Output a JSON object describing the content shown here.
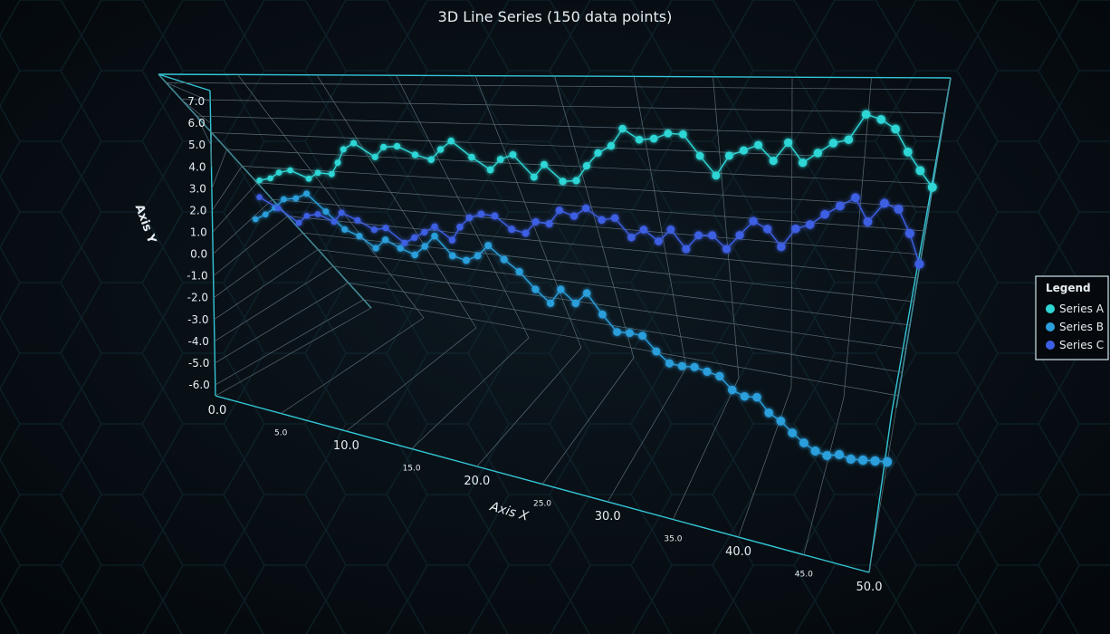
{
  "chart_data": {
    "type": "line3d",
    "title": "3D Line Series (150 data points)",
    "x_label": "Axis X",
    "y_label": "Axis Y",
    "legend_title": "Legend",
    "legend_position": "right",
    "grid": true,
    "xlim": [
      0,
      50
    ],
    "ylim": [
      -6.5,
      7.5
    ],
    "xticks": [
      {
        "value": 0,
        "label": "0.0"
      },
      {
        "value": 5,
        "label": "5.0"
      },
      {
        "value": 10,
        "label": "10.0"
      },
      {
        "value": 15,
        "label": "15.0"
      },
      {
        "value": 20,
        "label": "20.0"
      },
      {
        "value": 25,
        "label": "25.0"
      },
      {
        "value": 30,
        "label": "30.0"
      },
      {
        "value": 35,
        "label": "35.0"
      },
      {
        "value": 40,
        "label": "40.0"
      },
      {
        "value": 45,
        "label": "45.0"
      },
      {
        "value": 50,
        "label": "50.0"
      }
    ],
    "yticks": [
      {
        "value": -6,
        "label": "-6.0"
      },
      {
        "value": -5,
        "label": "-5.0"
      },
      {
        "value": -4,
        "label": "-4.0"
      },
      {
        "value": -3,
        "label": "-3.0"
      },
      {
        "value": -2,
        "label": "-2.0"
      },
      {
        "value": -1,
        "label": "-1.0"
      },
      {
        "value": 0,
        "label": "0.0"
      },
      {
        "value": 1,
        "label": "1.0"
      },
      {
        "value": 2,
        "label": "2.0"
      },
      {
        "value": 3,
        "label": "3.0"
      },
      {
        "value": 4,
        "label": "4.0"
      },
      {
        "value": 5,
        "label": "5.0"
      },
      {
        "value": 6,
        "label": "6.0"
      },
      {
        "value": 7,
        "label": "7.0"
      }
    ],
    "x": [
      1,
      2,
      3,
      4,
      5,
      6,
      7,
      8,
      9,
      10,
      11,
      12,
      13,
      14,
      15,
      16,
      17,
      18,
      19,
      20,
      21,
      22,
      23,
      24,
      25,
      26,
      27,
      28,
      29,
      30,
      31,
      32,
      33,
      34,
      35,
      36,
      37,
      38,
      39,
      40,
      41,
      42,
      43,
      44,
      45,
      46,
      47,
      48,
      49,
      50
    ],
    "series": [
      {
        "name": "Series A",
        "color": "#2fd6d6",
        "values": [
          1.5,
          1.7,
          2.1,
          2.3,
          1.9,
          2.3,
          2.3,
          3.0,
          3.8,
          4.2,
          3.5,
          4.1,
          4.2,
          3.8,
          3.6,
          4.2,
          4.7,
          3.9,
          3.3,
          3.9,
          4.2,
          3.1,
          3.8,
          3.0,
          3.1,
          3.9,
          4.6,
          5.0,
          5.9,
          5.4,
          5.5,
          5.8,
          5.8,
          4.8,
          3.9,
          4.9,
          5.2,
          5.5,
          4.8,
          5.7,
          4.8,
          5.3,
          5.8,
          6.0,
          7.2,
          7.0,
          6.6,
          5.6,
          4.8,
          4.1
        ]
      },
      {
        "name": "Series B",
        "color": "#2a9fdc",
        "values": [
          0.4,
          0.8,
          1.3,
          1.9,
          2.1,
          2.5,
          1.7,
          0.9,
          0.7,
          0.2,
          0.8,
          0.5,
          0.3,
          0.9,
          1.6,
          0.7,
          0.6,
          1.0,
          1.7,
          1.1,
          0.6,
          -0.2,
          -0.8,
          0.1,
          -0.5,
          0.2,
          -0.8,
          -1.6,
          -1.5,
          -1.5,
          -2.2,
          -2.7,
          -2.7,
          -2.6,
          -2.7,
          -2.8,
          -3.4,
          -3.6,
          -3.5,
          -4.2,
          -4.5,
          -5.0,
          -5.4,
          -5.7,
          -5.8,
          -5.6,
          -5.7,
          -5.6,
          -5.5,
          -5.4
        ]
      },
      {
        "name": "Series C",
        "color": "#3d5fe3",
        "values": [
          1.0,
          0.5,
          -0.2,
          0.3,
          0.5,
          0.2,
          0.8,
          0.5,
          0.1,
          0.3,
          -0.4,
          0.0,
          0.4,
          0.8,
          0.2,
          1.0,
          1.6,
          1.9,
          1.9,
          1.3,
          1.2,
          1.9,
          1.9,
          2.7,
          2.5,
          3.0,
          2.5,
          2.7,
          1.8,
          2.3,
          1.8,
          2.5,
          1.6,
          2.4,
          2.5,
          1.9,
          2.7,
          3.5,
          3.2,
          2.4,
          3.4,
          3.7,
          4.3,
          4.8,
          5.3,
          4.2,
          5.2,
          5.0,
          3.9,
          2.5
        ]
      }
    ]
  }
}
